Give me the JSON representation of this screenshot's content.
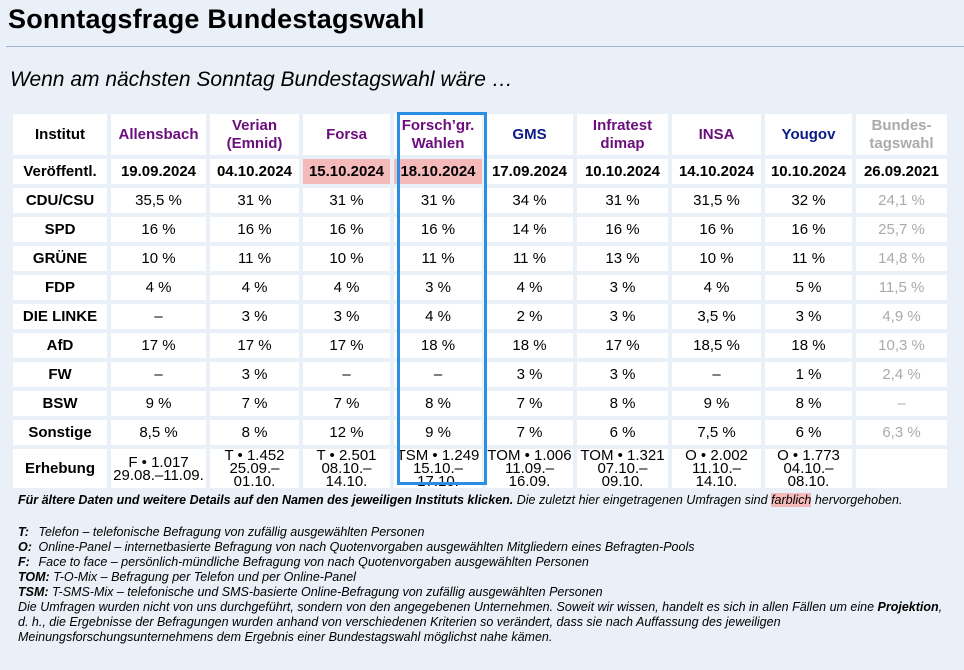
{
  "title": "Sonntagsfrage Bundestagswahl",
  "subtitle": "Wenn am nächsten Sonntag Bundestagswahl wäre …",
  "table": {
    "corner": "Institut",
    "institutes": [
      {
        "line1": "Allensbach",
        "line2": "",
        "color": "#6b0d7c"
      },
      {
        "line1": "Verian",
        "line2": "(Emnid)",
        "color": "#6b0d7c"
      },
      {
        "line1": "Forsa",
        "line2": "",
        "color": "#6b0d7c"
      },
      {
        "line1": "Forsch’gr.",
        "line2": "Wahlen",
        "color": "#6b0d7c"
      },
      {
        "line1": "GMS",
        "line2": "",
        "color": "#0b1b86"
      },
      {
        "line1": "Infratest",
        "line2": "dimap",
        "color": "#6b0d7c"
      },
      {
        "line1": "INSA",
        "line2": "",
        "color": "#6b0d7c"
      },
      {
        "line1": "Yougov",
        "line2": "",
        "color": "#0b1b86"
      },
      {
        "line1": "Bundes-",
        "line2": "tagswahl",
        "color": "#aaaaaa"
      }
    ],
    "published_label": "Veröffentl.",
    "published": [
      "19.09.2024",
      "04.10.2024",
      "15.10.2024",
      "18.10.2024",
      "17.09.2024",
      "10.10.2024",
      "14.10.2024",
      "10.10.2024",
      "26.09.2021"
    ],
    "highlight_color": "#f6b9b9",
    "parties": [
      {
        "name": "CDU/CSU",
        "values": [
          "35,5 %",
          "31 %",
          "31 %",
          "31 %",
          "34 %",
          "31 %",
          "31,5 %",
          "32 %",
          "24,1 %"
        ]
      },
      {
        "name": "SPD",
        "values": [
          "16 %",
          "16 %",
          "16 %",
          "16 %",
          "14 %",
          "16 %",
          "16 %",
          "16 %",
          "25,7 %"
        ]
      },
      {
        "name": "GRÜNE",
        "values": [
          "10 %",
          "11 %",
          "10 %",
          "11 %",
          "11 %",
          "13 %",
          "10 %",
          "11 %",
          "14,8 %"
        ]
      },
      {
        "name": "FDP",
        "values": [
          "4 %",
          "4 %",
          "4 %",
          "3 %",
          "4 %",
          "3 %",
          "4 %",
          "5 %",
          "11,5 %"
        ]
      },
      {
        "name": "DIE LINKE",
        "values": [
          "–",
          "3 %",
          "3 %",
          "4 %",
          "2 %",
          "3 %",
          "3,5 %",
          "3 %",
          "4,9 %"
        ]
      },
      {
        "name": "AfD",
        "values": [
          "17 %",
          "17 %",
          "17 %",
          "18 %",
          "18 %",
          "17 %",
          "18,5 %",
          "18 %",
          "10,3 %"
        ]
      },
      {
        "name": "FW",
        "values": [
          "–",
          "3 %",
          "–",
          "–",
          "3 %",
          "3 %",
          "–",
          "1 %",
          "2,4 %"
        ]
      },
      {
        "name": "BSW",
        "values": [
          "9 %",
          "7 %",
          "7 %",
          "8 %",
          "7 %",
          "8 %",
          "9 %",
          "8 %",
          "–"
        ]
      },
      {
        "name": "Sonstige",
        "values": [
          "8,5 %",
          "8 %",
          "12 %",
          "9 %",
          "7 %",
          "6 %",
          "7,5 %",
          "6 %",
          "6,3 %"
        ]
      }
    ],
    "survey_label": "Erhebung",
    "survey": [
      {
        "method": "F • 1.017",
        "period": "29.08.–11.09."
      },
      {
        "method": "T • 1.452",
        "period": "25.09.–01.10."
      },
      {
        "method": "T • 2.501",
        "period": "08.10.–14.10."
      },
      {
        "method": "TSM • 1.249",
        "period": "15.10.–17.10."
      },
      {
        "method": "TOM • 1.006",
        "period": "11.09.–16.09."
      },
      {
        "method": "TOM • 1.321",
        "period": "07.10.–09.10."
      },
      {
        "method": "O • 2.002",
        "period": "11.10.–14.10."
      },
      {
        "method": "O • 1.773",
        "period": "04.10.–08.10."
      },
      {
        "method": "",
        "period": ""
      }
    ]
  },
  "notes": {
    "intro_bold": "Für ältere Daten und weitere Details auf den Namen des jeweiligen Instituts klicken.",
    "intro_rest": " Die zuletzt hier eingetragenen Umfragen sind ",
    "intro_highlight": "farblich",
    "intro_end": " hervorgehoben.",
    "legend": [
      {
        "key": "T:",
        "text": "Telefon – telefonische Befragung von zufällig ausgewählten Personen"
      },
      {
        "key": "O:",
        "text": "Online-Panel – internetbasierte Befragung von nach Quotenvorgaben ausgewählten Mitgliedern eines Befragten-Pools"
      },
      {
        "key": "F:",
        "text": "Face to face – persönlich-mündliche Befragung von nach Quotenvorgaben ausgewählten Personen"
      },
      {
        "key": "TOM:",
        "text": "T-O-Mix – Befragung per Telefon und per Online-Panel"
      },
      {
        "key": "TSM:",
        "text": "T-SMS-Mix – telefonische und SMS-basierte Online-Befragung von zufällig ausgewählten Personen"
      }
    ],
    "footer_a": "Die Umfragen wurden nicht von uns durchgeführt, sondern von den angegebenen Unternehmen. Soweit wir wissen, handelt es sich in allen Fällen um eine ",
    "footer_bold": "Projektion",
    "footer_b": ", d. h., die Ergebnisse der Befragungen wurden anhand von verschiedenen Kriterien so verändert, dass sie nach Auffassung des jeweiligen Meinungsforschungsunternehmens dem Ergebnis einer Bundestagswahl möglichst nahe kämen."
  }
}
